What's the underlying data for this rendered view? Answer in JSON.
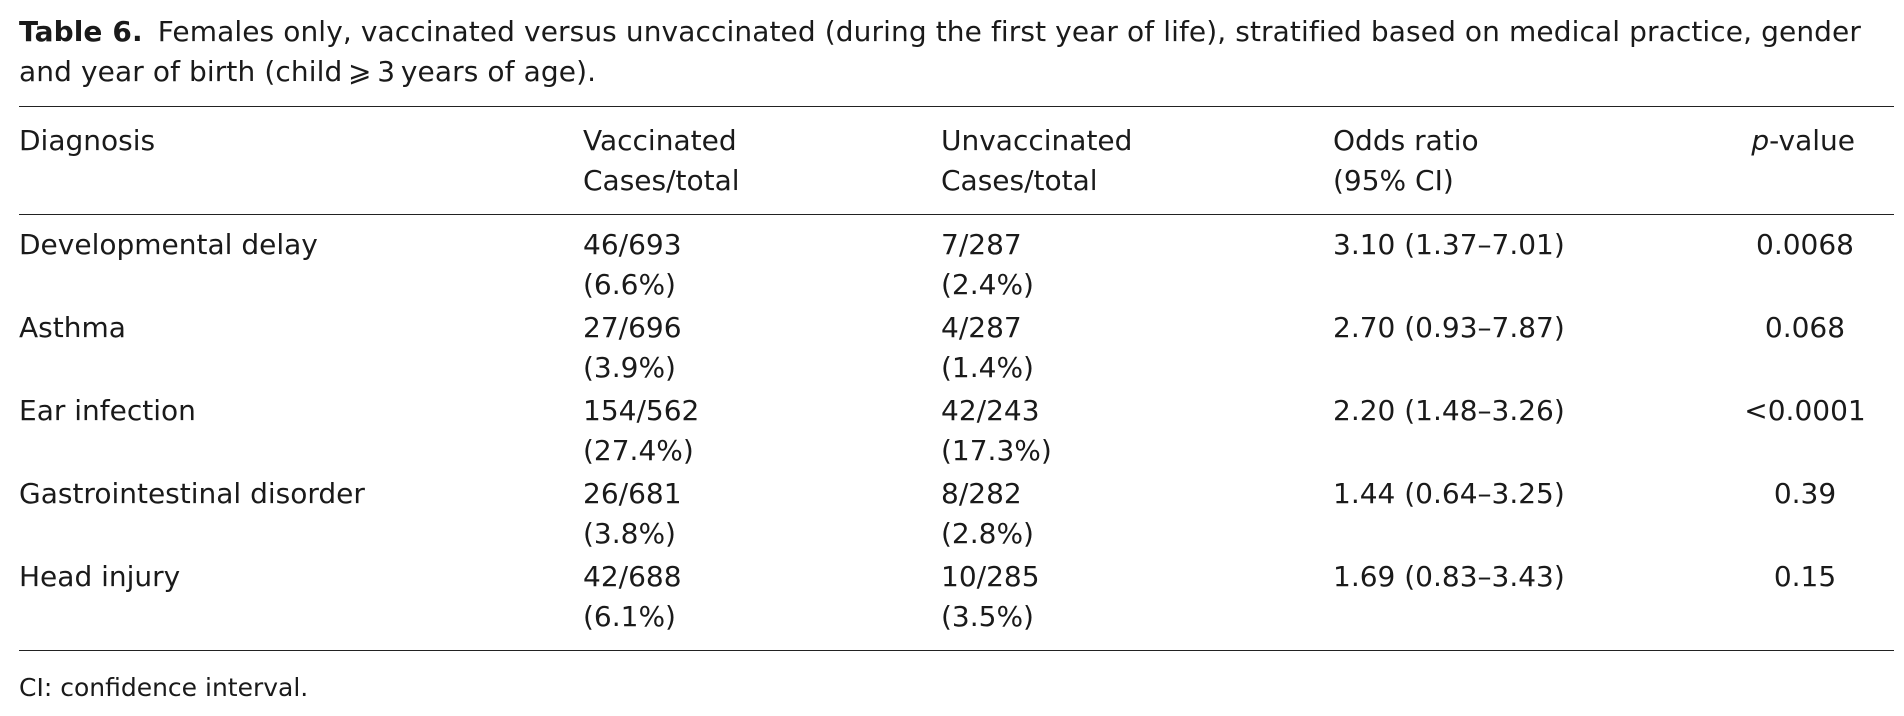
{
  "caption": {
    "label": "Table 6.",
    "text": "Females only, vaccinated versus unvaccinated (during the first year of life), stratified based on medical practice, gender and year of birth (child ⩾ 3 years of age)."
  },
  "headers": {
    "diagnosis": "Diagnosis",
    "vaccinated": [
      "Vaccinated",
      "Cases/total"
    ],
    "unvaccinated": [
      "Unvaccinated",
      "Cases/total"
    ],
    "odds_ratio": [
      "Odds ratio",
      "(95% CI)"
    ],
    "p_value_italic": "p",
    "p_value_rest": "-value"
  },
  "rows": [
    {
      "diagnosis": "Developmental delay",
      "vaccinated": [
        "46/693",
        "(6.6%)"
      ],
      "unvaccinated": [
        "7/287",
        "(2.4%)"
      ],
      "odds_ratio": "3.10 (1.37–7.01)",
      "p_value": "0.0068"
    },
    {
      "diagnosis": "Asthma",
      "vaccinated": [
        "27/696",
        "(3.9%)"
      ],
      "unvaccinated": [
        "4/287",
        "(1.4%)"
      ],
      "odds_ratio": "2.70 (0.93–7.87)",
      "p_value": "0.068"
    },
    {
      "diagnosis": "Ear infection",
      "vaccinated": [
        "154/562",
        "(27.4%)"
      ],
      "unvaccinated": [
        "42/243",
        "(17.3%)"
      ],
      "odds_ratio": "2.20 (1.48–3.26)",
      "p_value": "<0.0001"
    },
    {
      "diagnosis": "Gastrointestinal disorder",
      "vaccinated": [
        "26/681",
        "(3.8%)"
      ],
      "unvaccinated": [
        "8/282",
        "(2.8%)"
      ],
      "odds_ratio": "1.44 (0.64–3.25)",
      "p_value": "0.39"
    },
    {
      "diagnosis": "Head injury",
      "vaccinated": [
        "42/688",
        "(6.1%)"
      ],
      "unvaccinated": [
        "10/285",
        "(3.5%)"
      ],
      "odds_ratio": "1.69 (0.83–3.43)",
      "p_value": "0.15"
    }
  ],
  "footnote": "CI: confidence interval."
}
